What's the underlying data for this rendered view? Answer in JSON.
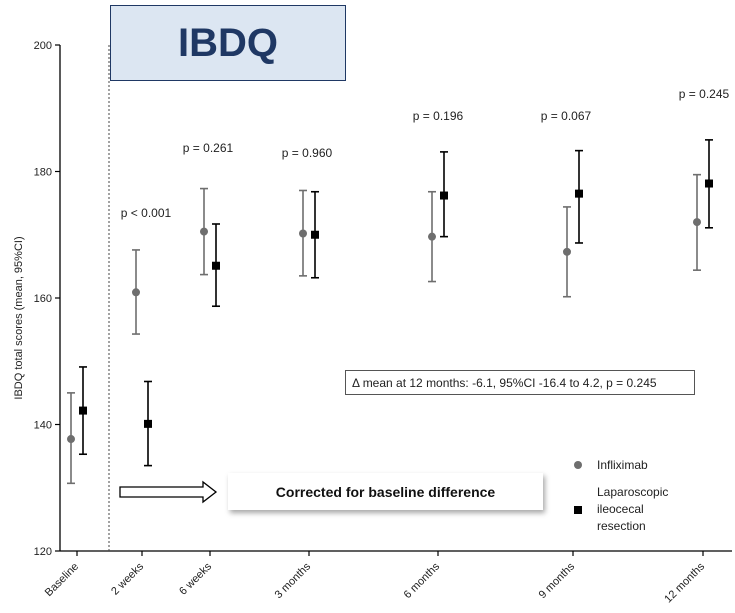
{
  "chart_data": {
    "type": "scatter",
    "title": "IBDQ",
    "ylabel": "IBDQ total scores (mean, 95%CI)",
    "xlabel": "",
    "ylim": [
      120,
      200
    ],
    "yticks": [
      120,
      140,
      160,
      180,
      200
    ],
    "grid": false,
    "categories": [
      "Baseline",
      "2 weeks",
      "6 weeks",
      "3 months",
      "6 months",
      "9 months",
      "12 months"
    ],
    "series": [
      {
        "name": "Infliximab",
        "marker": "circle",
        "color": "#6e6e6e",
        "values": [
          137.7,
          160.9,
          170.5,
          170.2,
          169.7,
          167.3,
          172.0
        ],
        "ci_low": [
          130.7,
          154.3,
          163.7,
          163.5,
          162.6,
          160.2,
          164.4
        ],
        "ci_high": [
          145.0,
          167.6,
          177.3,
          177.0,
          176.8,
          174.4,
          179.5
        ]
      },
      {
        "name": "Laparoscopic ileocecal resection",
        "name_lines": [
          "Laparoscopic",
          "ileocecal",
          "resection"
        ],
        "marker": "square",
        "color": "#000000",
        "values": [
          142.2,
          140.1,
          165.1,
          170.0,
          176.2,
          176.5,
          178.1
        ],
        "ci_low": [
          135.3,
          133.5,
          158.7,
          163.2,
          169.7,
          168.7,
          171.1
        ],
        "ci_high": [
          149.1,
          146.8,
          171.7,
          176.8,
          183.1,
          183.3,
          185.0
        ]
      }
    ],
    "pvalues": [
      "",
      "p < 0.001",
      "p = 0.261",
      "p = 0.960",
      "p = 0.196",
      "p = 0.067",
      "p = 0.245"
    ],
    "legend_position": "bottom-right"
  },
  "annotation": {
    "delta_text": "Δ mean at 12 months: -6.1, 95%CI -16.4 to 4.2, p = 0.245",
    "correction_text": "Corrected for baseline difference"
  }
}
